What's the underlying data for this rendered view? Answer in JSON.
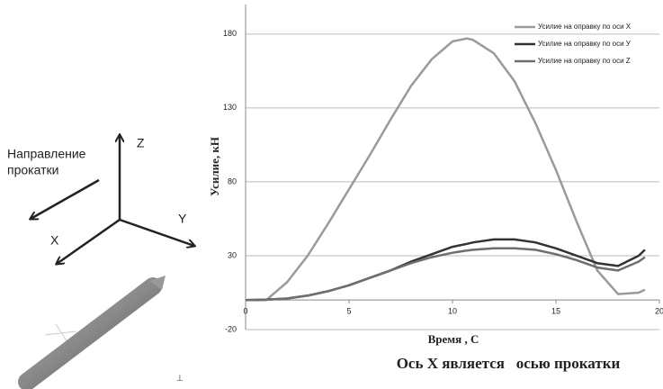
{
  "chart_data": {
    "type": "line",
    "x_label": "Время , С",
    "y_label": "Усилие, кН",
    "x": [
      0,
      1,
      2,
      3,
      4,
      5,
      6,
      7,
      8,
      9,
      10,
      10.7,
      11,
      12,
      13,
      14,
      15,
      16,
      17,
      18,
      19,
      19.3
    ],
    "series": [
      {
        "name": "Усилие на оправку по оси X",
        "color": "#9a9a9a",
        "values": [
          0,
          0,
          12,
          30,
          52,
          75,
          98,
          122,
          145,
          163,
          175,
          177,
          176,
          167,
          148,
          120,
          88,
          53,
          20,
          4,
          5,
          7
        ]
      },
      {
        "name": "Усилие на оправку по оси У",
        "color": "#333333",
        "values": [
          0,
          0.3,
          1,
          3,
          6,
          10,
          15,
          20,
          26,
          31,
          36,
          38,
          39,
          41,
          41,
          39,
          35,
          30,
          25,
          23,
          30,
          34
        ]
      },
      {
        "name": "Усилие на оправку по оси Z",
        "color": "#6e6e6e",
        "values": [
          0,
          0.3,
          1,
          3,
          6,
          10,
          15,
          20,
          25,
          29,
          32,
          33.5,
          34,
          35,
          35,
          34,
          31,
          27,
          22,
          20,
          26,
          29
        ]
      }
    ],
    "xlim": [
      0,
      20
    ],
    "xticks": [
      0,
      5,
      10,
      15,
      20
    ],
    "ylim": [
      -20,
      200
    ],
    "yticks": [
      -20,
      30,
      80,
      130,
      180
    ],
    "grid": true,
    "legend": "upper right"
  },
  "caption": "Ось X является   осью прокатки",
  "diagram": {
    "direction_label": [
      "Направление",
      "прокатки"
    ],
    "axis_z": "Z",
    "axis_y": "Y",
    "axis_x": "X"
  }
}
